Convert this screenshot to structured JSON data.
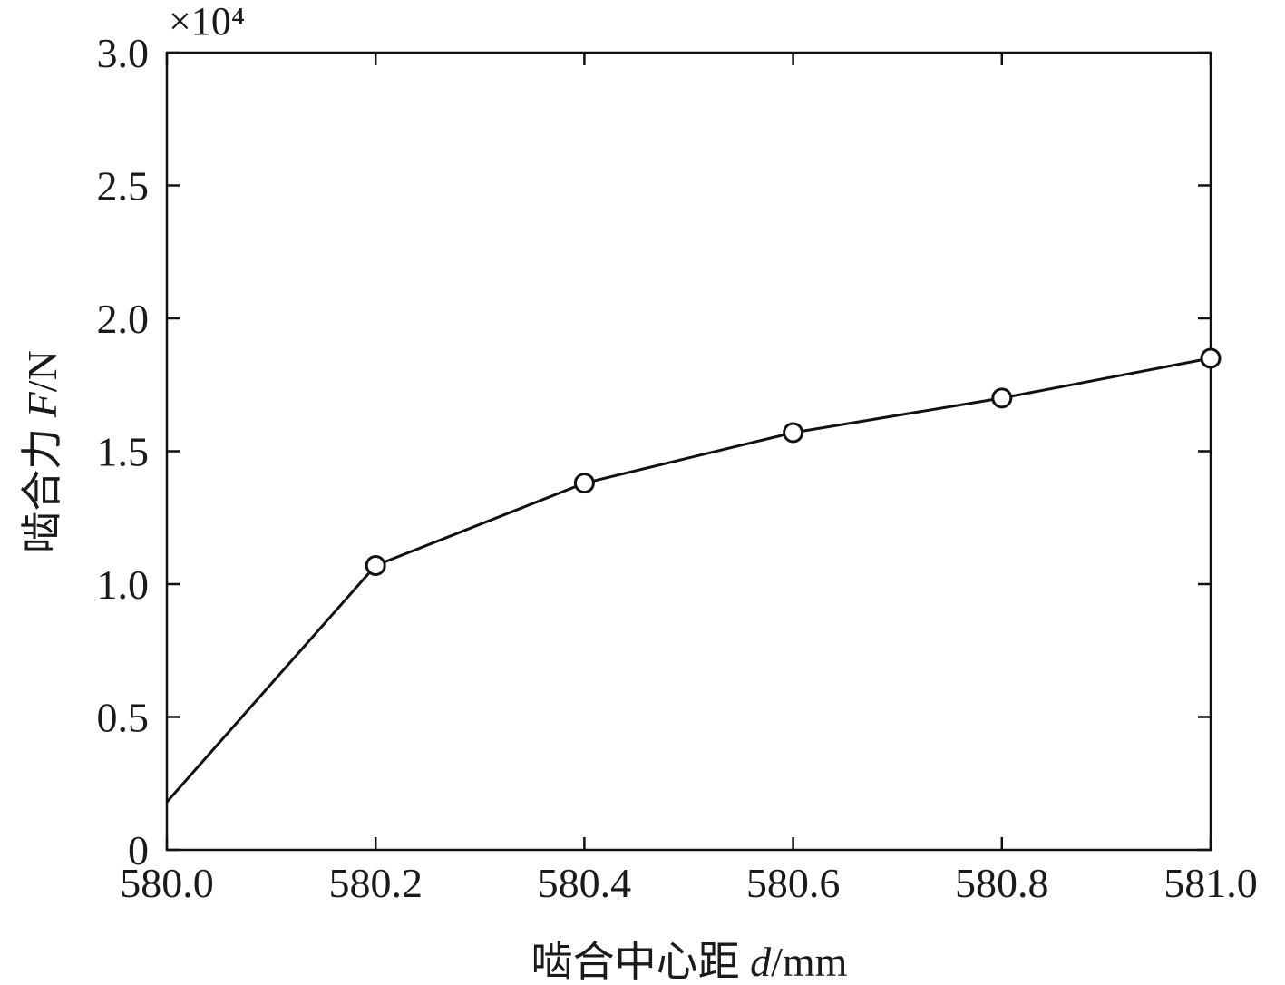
{
  "chart_data": {
    "type": "line",
    "xlabel_prefix": "啮合中心距 ",
    "xlabel_var": "d",
    "xlabel_unit": "/mm",
    "ylabel_prefix": "啮合力 ",
    "ylabel_var": "F",
    "ylabel_unit": "/N",
    "y_multiplier": "×10⁴",
    "xlim": [
      580.0,
      581.0
    ],
    "ylim": [
      0,
      3.0
    ],
    "x_ticks": [
      "580.0",
      "580.2",
      "580.4",
      "580.6",
      "580.8",
      "581.0"
    ],
    "y_ticks": [
      "0",
      "0.5",
      "1.0",
      "1.5",
      "2.0",
      "2.5",
      "3.0"
    ],
    "x": [
      580.0,
      580.2,
      580.4,
      580.6,
      580.8,
      581.0
    ],
    "y": [
      0.18,
      1.07,
      1.38,
      1.57,
      1.7,
      1.85
    ],
    "marker_indices": [
      1,
      2,
      3,
      4,
      5
    ],
    "marker": "circle",
    "line_color": "#111111",
    "grid": false
  }
}
